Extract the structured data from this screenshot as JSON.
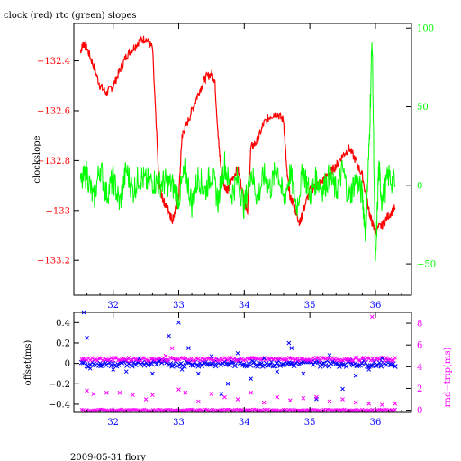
{
  "figure": {
    "footer": "2009-05-31 flory"
  },
  "chart_data": [
    {
      "type": "line",
      "title": "clock (red) rtc (green) slopes",
      "ylabel": "clockslope",
      "y2label": "",
      "xlim": [
        31.4,
        36.55
      ],
      "ylim": [
        -133.34,
        -132.25
      ],
      "y2lim": [
        -70,
        103
      ],
      "x_ticks": [
        32,
        33,
        34,
        35,
        36
      ],
      "y_ticks": [
        -132.4,
        -132.6,
        -132.8,
        -133,
        -133.2
      ],
      "y_tick_labels": [
        "−132.4",
        "−132.6",
        "−132.8",
        "−133",
        "−133.2"
      ],
      "y2_ticks": [
        100,
        50,
        0,
        -50
      ],
      "y2_tick_labels": [
        "100",
        "50",
        "0",
        "−50"
      ],
      "grid": false,
      "series": [
        {
          "color": "#ff0000",
          "axis": "left",
          "x": [
            31.5,
            31.55,
            31.6,
            31.7,
            31.8,
            31.9,
            32.0,
            32.1,
            32.2,
            32.3,
            32.4,
            32.5,
            32.6,
            32.7,
            32.75,
            32.8,
            32.85,
            32.9,
            32.95,
            33.0,
            33.05,
            33.1,
            33.2,
            33.3,
            33.4,
            33.5,
            33.55,
            33.6,
            33.65,
            33.7,
            33.75,
            33.8,
            33.9,
            34.0,
            34.05,
            34.1,
            34.2,
            34.3,
            34.4,
            34.5,
            34.6,
            34.65,
            34.7,
            34.75,
            34.8,
            34.85,
            34.9,
            35.0,
            35.1,
            35.2,
            35.3,
            35.4,
            35.5,
            35.6,
            35.7,
            35.8,
            35.9,
            35.95,
            36.0,
            36.1,
            36.2,
            36.3
          ],
          "y": [
            -132.36,
            -132.33,
            -132.35,
            -132.42,
            -132.5,
            -132.53,
            -132.5,
            -132.44,
            -132.38,
            -132.35,
            -132.32,
            -132.31,
            -132.35,
            -132.9,
            -132.95,
            -132.98,
            -133.0,
            -133.04,
            -133.0,
            -132.95,
            -132.7,
            -132.67,
            -132.6,
            -132.53,
            -132.47,
            -132.45,
            -132.48,
            -132.7,
            -132.85,
            -132.9,
            -132.92,
            -132.88,
            -132.83,
            -132.96,
            -133.0,
            -132.75,
            -132.72,
            -132.65,
            -132.62,
            -132.61,
            -132.64,
            -132.85,
            -132.95,
            -132.97,
            -133.02,
            -133.05,
            -133.0,
            -132.92,
            -132.9,
            -132.88,
            -132.85,
            -132.82,
            -132.78,
            -132.75,
            -132.8,
            -132.86,
            -133.0,
            -133.05,
            -133.08,
            -133.06,
            -133.02,
            -132.99
          ]
        },
        {
          "color": "#00ff00",
          "axis": "right",
          "x": [
            31.5,
            31.6,
            31.7,
            31.8,
            31.9,
            32.0,
            32.1,
            32.2,
            32.3,
            32.4,
            32.5,
            32.6,
            32.7,
            32.8,
            32.9,
            33.0,
            33.1,
            33.2,
            33.3,
            33.4,
            33.5,
            33.6,
            33.7,
            33.8,
            33.9,
            34.0,
            34.1,
            34.2,
            34.3,
            34.4,
            34.5,
            34.6,
            34.7,
            34.8,
            34.9,
            35.0,
            35.1,
            35.2,
            35.3,
            35.4,
            35.5,
            35.6,
            35.7,
            35.8,
            35.85,
            35.9,
            35.95,
            36.0,
            36.05,
            36.1,
            36.2,
            36.3
          ],
          "y": [
            0,
            8,
            -10,
            12,
            -6,
            4,
            -12,
            10,
            -4,
            6,
            2,
            3,
            1,
            2,
            0,
            -8,
            10,
            -12,
            6,
            -4,
            8,
            -10,
            14,
            -6,
            4,
            -14,
            10,
            -8,
            6,
            -2,
            12,
            -10,
            8,
            -14,
            10,
            -6,
            4,
            -2,
            6,
            -4,
            10,
            -8,
            4,
            -6,
            -30,
            20,
            95,
            -55,
            12,
            -10,
            6,
            0
          ]
        }
      ]
    },
    {
      "type": "scatter",
      "title": "",
      "ylabel": "offset(ms)",
      "y2label": "rnd−trip(ms)",
      "xlim": [
        31.4,
        36.55
      ],
      "ylim": [
        -0.48,
        0.5
      ],
      "y2lim": [
        -0.2,
        9.0
      ],
      "x_ticks": [
        32,
        33,
        34,
        35,
        36
      ],
      "y_ticks": [
        0.4,
        0.2,
        0,
        -0.2,
        -0.4
      ],
      "y_tick_labels": [
        "0.4",
        "0.2",
        "0",
        "−0.2",
        "−0.4"
      ],
      "y2_ticks": [
        8,
        6,
        4,
        2,
        0
      ],
      "y2_tick_labels": [
        "8",
        "6",
        "4",
        "2",
        "0"
      ],
      "grid": false,
      "series": [
        {
          "color": "#0000ff",
          "axis": "left",
          "marker": "x",
          "x": [
            31.55,
            31.6,
            31.65,
            31.8,
            32.0,
            32.2,
            32.4,
            32.6,
            32.7,
            32.85,
            33.0,
            33.05,
            33.15,
            33.3,
            33.5,
            33.65,
            33.75,
            33.9,
            34.1,
            34.3,
            34.5,
            34.68,
            34.72,
            34.9,
            35.1,
            35.3,
            35.5,
            35.7,
            35.9,
            36.1,
            36.3
          ],
          "y": [
            0.5,
            0.25,
            -0.05,
            0.0,
            -0.06,
            -0.08,
            0.05,
            -0.1,
            0.02,
            0.27,
            0.4,
            -0.06,
            0.15,
            -0.1,
            0.07,
            -0.3,
            -0.2,
            0.1,
            -0.15,
            0.05,
            -0.08,
            0.2,
            0.15,
            -0.1,
            -0.35,
            0.08,
            -0.25,
            -0.12,
            -0.06,
            0.05,
            -0.03
          ]
        },
        {
          "color": "#ff00ff",
          "axis": "right",
          "marker": "x",
          "x": [
            31.6,
            31.7,
            31.9,
            32.1,
            32.3,
            32.5,
            32.6,
            32.8,
            32.9,
            33.0,
            33.1,
            33.3,
            33.5,
            33.7,
            33.9,
            34.1,
            34.3,
            34.5,
            34.7,
            34.9,
            35.1,
            35.3,
            35.5,
            35.7,
            35.9,
            35.95,
            36.1,
            36.3
          ],
          "y": [
            1.8,
            1.5,
            1.6,
            1.6,
            1.4,
            1.0,
            1.4,
            5.0,
            5.7,
            1.9,
            1.6,
            0.8,
            1.5,
            1.2,
            1.0,
            1.6,
            0.7,
            1.2,
            0.9,
            1.1,
            1.2,
            0.8,
            1.0,
            0.7,
            0.6,
            8.6,
            0.5,
            0.6
          ]
        }
      ],
      "bands": [
        {
          "color": "#0000ff",
          "axis": "left",
          "center": 0.0,
          "spread": 0.03
        },
        {
          "color": "#ff00ff",
          "axis": "right",
          "center": 4.7,
          "spread": 0.15
        },
        {
          "color": "#ff00ff",
          "axis": "right",
          "center": 0.0,
          "spread": 0.07
        }
      ]
    }
  ]
}
